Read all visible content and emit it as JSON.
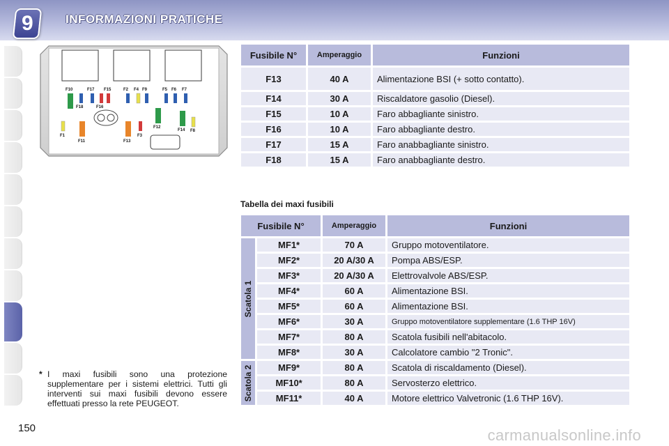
{
  "header": {
    "chapter_number": "9",
    "title": "INFORMAZIONI PRATICHE"
  },
  "fuse_box": {
    "labels": [
      "F10",
      "F17",
      "F15",
      "F2",
      "F4",
      "F9",
      "F5",
      "F6",
      "F7",
      "F18",
      "F16",
      "F1",
      "F11",
      "F13",
      "F3",
      "F12",
      "F14",
      "F8"
    ],
    "colors": {
      "green": "#2e9a4a",
      "blue": "#2f5fb0",
      "red": "#d23a3a",
      "yellow": "#e8e04a",
      "orange": "#e8852a"
    }
  },
  "table1": {
    "headers": [
      "Fusibile N°",
      "Amperaggio",
      "Funzioni"
    ],
    "rows": [
      {
        "fuse": "F13",
        "amp": "40 A",
        "fn": "Alimentazione BSI (+ sotto contatto)."
      },
      {
        "fuse": "F14",
        "amp": "30 A",
        "fn": "Riscaldatore gasolio (Diesel)."
      },
      {
        "fuse": "F15",
        "amp": "10 A",
        "fn": "Faro abbagliante sinistro."
      },
      {
        "fuse": "F16",
        "amp": "10 A",
        "fn": "Faro abbagliante destro."
      },
      {
        "fuse": "F17",
        "amp": "15 A",
        "fn": "Faro anabbagliante sinistro."
      },
      {
        "fuse": "F18",
        "amp": "15 A",
        "fn": "Faro anabbagliante destro."
      }
    ]
  },
  "maxi": {
    "title": "Tabella dei maxi fusibili",
    "headers": [
      "Fusibile N°",
      "Amperaggio",
      "Funzioni"
    ],
    "group1": "Scatola 1",
    "group2": "Scatola 2",
    "rows": [
      {
        "fuse": "MF1*",
        "amp": "70 A",
        "fn": "Gruppo motoventilatore."
      },
      {
        "fuse": "MF2*",
        "amp": "20 A/30 A",
        "fn": "Pompa ABS/ESP."
      },
      {
        "fuse": "MF3*",
        "amp": "20 A/30 A",
        "fn": "Elettrovalvole ABS/ESP."
      },
      {
        "fuse": "MF4*",
        "amp": "60 A",
        "fn": "Alimentazione BSI."
      },
      {
        "fuse": "MF5*",
        "amp": "60 A",
        "fn": "Alimentazione BSI."
      },
      {
        "fuse": "MF6*",
        "amp": "30 A",
        "fn": "Gruppo motoventilatore supplementare (1.6 THP 16V)"
      },
      {
        "fuse": "MF7*",
        "amp": "80 A",
        "fn": "Scatola fusibili nell'abitacolo."
      },
      {
        "fuse": "MF8*",
        "amp": "30 A",
        "fn": "Calcolatore cambio \"2 Tronic\"."
      },
      {
        "fuse": "MF9*",
        "amp": "80 A",
        "fn": "Scatola di riscaldamento (Diesel)."
      },
      {
        "fuse": "MF10*",
        "amp": "80 A",
        "fn": "Servosterzo elettrico."
      },
      {
        "fuse": "MF11*",
        "amp": "40 A",
        "fn": "Motore elettrico Valvetronic (1.6 THP 16V)."
      }
    ]
  },
  "footnote": {
    "star": "*",
    "text": "I maxi fusibili sono una protezione supplementare per i sistemi elettrici. Tutti gli interventi sui maxi fusibili devono essere effettuati presso la rete PEUGEOT."
  },
  "page_number": "150",
  "watermark": "carmanualsonline.info"
}
